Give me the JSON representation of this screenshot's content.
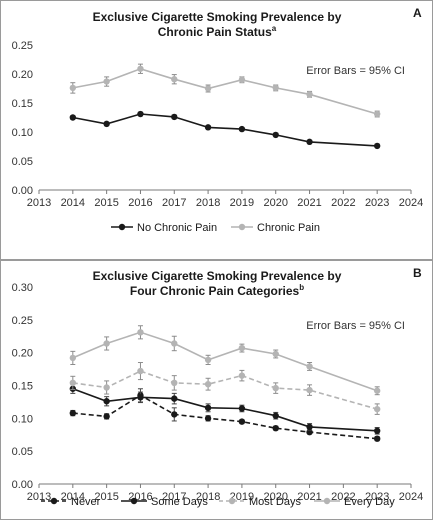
{
  "panels": [
    {
      "letter": "A",
      "title_line1": "Exclusive Cigarette Smoking Prevalence by",
      "title_line2": "Chronic Pain Status",
      "title_sup": "a",
      "note": "Error Bars = 95% CI"
    },
    {
      "letter": "B",
      "title_line1": "Exclusive Cigarette Smoking Prevalence by",
      "title_line2": "Four Chronic Pain Categories",
      "title_sup": "b",
      "note": "Error Bars = 95% CI"
    }
  ],
  "chart_data": [
    {
      "type": "line",
      "title": "Exclusive Cigarette Smoking Prevalence by Chronic Pain Status",
      "x_ticks": [
        2013,
        2014,
        2015,
        2016,
        2017,
        2018,
        2019,
        2020,
        2021,
        2022,
        2023,
        2024
      ],
      "xlim": [
        2013,
        2024
      ],
      "y_ticks": [
        "0.00",
        "0.05",
        "0.10",
        "0.15",
        "0.20",
        "0.25"
      ],
      "ylim": [
        0,
        0.25
      ],
      "x": [
        2014,
        2015,
        2016,
        2017,
        2018,
        2019,
        2020,
        2021,
        2023
      ],
      "series": [
        {
          "name": "No Chronic Pain",
          "color": "#1a1a1a",
          "dash": false,
          "values": [
            0.125,
            0.114,
            0.131,
            0.126,
            0.108,
            0.105,
            0.095,
            0.083,
            0.076
          ],
          "ci": [
            0.003,
            0.003,
            0.003,
            0.003,
            0.002,
            0.002,
            0.002,
            0.002,
            0.002
          ]
        },
        {
          "name": "Chronic Pain",
          "color": "#b4b4b4",
          "dash": false,
          "values": [
            0.176,
            0.187,
            0.209,
            0.191,
            0.175,
            0.19,
            0.176,
            0.165,
            0.131
          ],
          "ci": [
            0.009,
            0.008,
            0.008,
            0.008,
            0.006,
            0.005,
            0.005,
            0.005,
            0.005
          ]
        }
      ]
    },
    {
      "type": "line",
      "title": "Exclusive Cigarette Smoking Prevalence by Four Chronic Pain Categories",
      "x_ticks": [
        2013,
        2014,
        2015,
        2016,
        2017,
        2018,
        2019,
        2020,
        2021,
        2022,
        2023,
        2024
      ],
      "xlim": [
        2013,
        2024
      ],
      "y_ticks": [
        "0.00",
        "0.05",
        "0.10",
        "0.15",
        "0.20",
        "0.25",
        "0.30"
      ],
      "ylim": [
        0,
        0.3
      ],
      "x": [
        2014,
        2015,
        2016,
        2017,
        2018,
        2019,
        2020,
        2021,
        2023
      ],
      "series": [
        {
          "name": "Never",
          "color": "#1a1a1a",
          "dash": true,
          "values": [
            0.108,
            0.103,
            0.135,
            0.106,
            0.1,
            0.095,
            0.085,
            0.079,
            0.069
          ],
          "ci": [
            0.004,
            0.004,
            0.01,
            0.01,
            0.004,
            0.003,
            0.003,
            0.003,
            0.003
          ]
        },
        {
          "name": "Some Days",
          "color": "#1a1a1a",
          "dash": false,
          "values": [
            0.145,
            0.126,
            0.132,
            0.13,
            0.116,
            0.115,
            0.104,
            0.087,
            0.081
          ],
          "ci": [
            0.007,
            0.007,
            0.008,
            0.008,
            0.006,
            0.005,
            0.005,
            0.005,
            0.005
          ]
        },
        {
          "name": "Most Days",
          "color": "#b4b4b4",
          "dash": true,
          "values": [
            0.154,
            0.147,
            0.172,
            0.154,
            0.152,
            0.165,
            0.146,
            0.143,
            0.114
          ],
          "ci": [
            0.01,
            0.01,
            0.013,
            0.011,
            0.009,
            0.008,
            0.008,
            0.008,
            0.008
          ]
        },
        {
          "name": "Every Day",
          "color": "#b4b4b4",
          "dash": false,
          "values": [
            0.192,
            0.214,
            0.231,
            0.214,
            0.189,
            0.207,
            0.198,
            0.179,
            0.142
          ],
          "ci": [
            0.01,
            0.01,
            0.01,
            0.011,
            0.007,
            0.006,
            0.006,
            0.006,
            0.006
          ]
        }
      ]
    }
  ]
}
